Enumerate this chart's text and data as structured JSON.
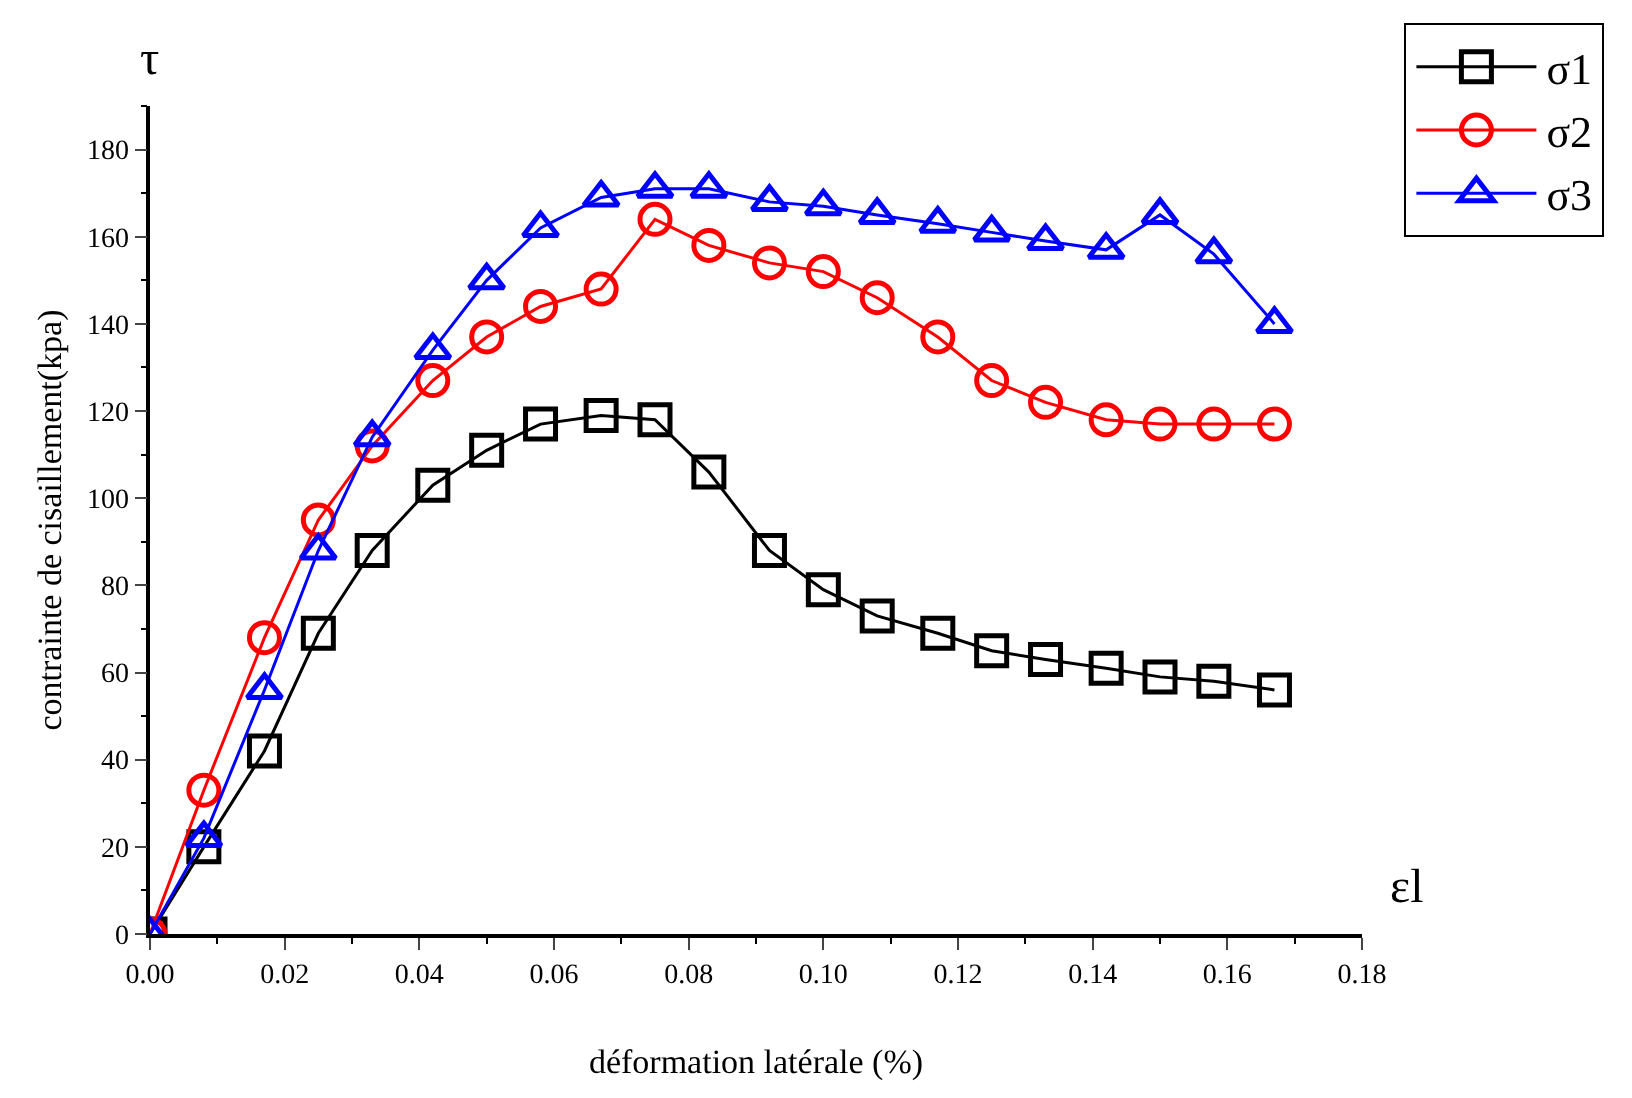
{
  "chart_data": {
    "type": "line",
    "xlabel": "déformation latérale (%)",
    "ylabel": "contrainte de cisaillement(kpa)",
    "annotations": [
      "τ",
      "εl"
    ],
    "x": [
      0,
      0.008,
      0.017,
      0.025,
      0.033,
      0.042,
      0.05,
      0.058,
      0.067,
      0.075,
      0.083,
      0.092,
      0.1,
      0.108,
      0.117,
      0.125,
      0.133,
      0.142,
      0.15,
      0.158,
      0.167
    ],
    "series": [
      {
        "name": "σ1",
        "color": "#000000",
        "marker": "square",
        "values": [
          0,
          20,
          42,
          69,
          88,
          103,
          111,
          117,
          119,
          118,
          106,
          88,
          79,
          73,
          69,
          65,
          63,
          61,
          59,
          58,
          56
        ]
      },
      {
        "name": "σ2",
        "color": "#ff0000",
        "marker": "circle",
        "values": [
          0,
          33,
          68,
          95,
          112,
          127,
          137,
          144,
          148,
          164,
          158,
          154,
          152,
          146,
          137,
          127,
          122,
          118,
          117,
          117,
          117
        ]
      },
      {
        "name": "σ3",
        "color": "#0000ff",
        "marker": "triangle",
        "values": [
          0,
          22,
          56,
          88,
          114,
          134,
          150,
          162,
          169,
          171,
          171,
          168,
          167,
          165,
          163,
          161,
          159,
          157,
          165,
          156,
          140
        ]
      }
    ],
    "xlim": [
      0,
      0.18
    ],
    "xticks": [
      {
        "value": 0,
        "label": "0.00"
      },
      0.02,
      0.04,
      0.06,
      0.08,
      {
        "value": 0.1,
        "label": "0.10"
      },
      0.12,
      0.14,
      0.16,
      0.18
    ],
    "ylim": [
      0,
      190
    ],
    "yticks": [
      0,
      20,
      40,
      60,
      80,
      100,
      120,
      140,
      160,
      180
    ],
    "legend": "top right",
    "line_style": "solid"
  }
}
